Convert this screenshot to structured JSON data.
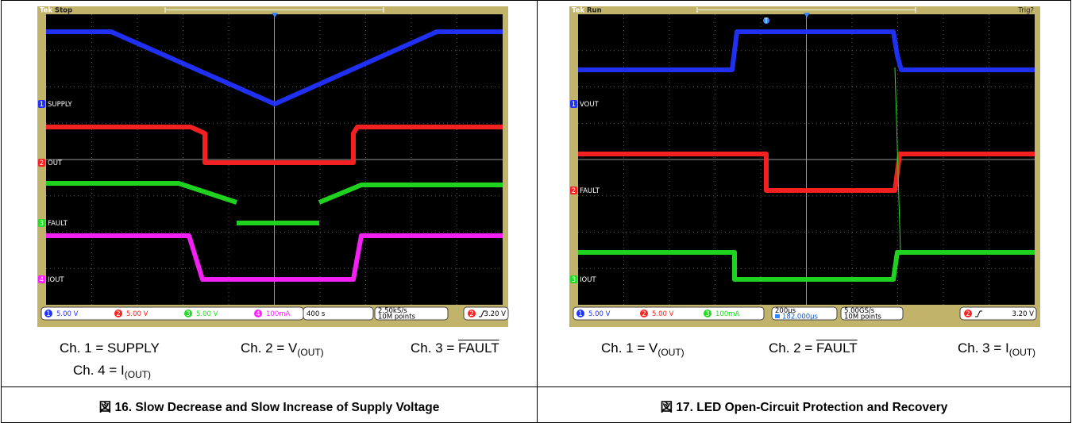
{
  "figures": [
    {
      "scope": {
        "logo": "Tek",
        "status": "Stop",
        "channels": [
          {
            "number": "1",
            "label": "SUPPLY",
            "color": "#2233ff"
          },
          {
            "number": "2",
            "label": "OUT",
            "color": "#ff2222"
          },
          {
            "number": "3",
            "label": "FAULT",
            "color": "#22dd22"
          },
          {
            "number": "4",
            "label": "IOUT",
            "color": "#ff22ff"
          }
        ],
        "readouts": [
          "5.00 V",
          "5.00 V",
          "5.00 V",
          "100mA"
        ],
        "timebase": "400 s",
        "sample_rate": "2.50kS/s",
        "record_length": "10M points",
        "trigger_channel": "2",
        "trigger_level": "3.20 V"
      },
      "channel_notes": [
        {
          "text": "Ch. 1 = SUPPLY"
        },
        {
          "text": "Ch. 2 = V",
          "sub": "(OUT)"
        },
        {
          "text": "Ch. 3 = ",
          "overline": "FAULT"
        },
        {
          "text": "Ch. 4 = I",
          "sub": "(OUT)"
        }
      ],
      "caption": "図 16. Slow Decrease and Slow Increase of Supply Voltage"
    },
    {
      "scope": {
        "logo": "Tek",
        "status": "Run",
        "trigger_state": "Trig?",
        "trigger_marker": "T",
        "channels": [
          {
            "number": "1",
            "label": "VOUT",
            "color": "#2233ff"
          },
          {
            "number": "2",
            "label": "FAULT",
            "color": "#ff2222"
          },
          {
            "number": "3",
            "label": "IOUT",
            "color": "#22dd22"
          }
        ],
        "readouts": [
          "5.00 V",
          "5.00 V",
          "100mA"
        ],
        "timebase": "200µs",
        "delay": "182.000µs",
        "sample_rate": "5.00GS/s",
        "record_length": "10M points",
        "trigger_channel": "2",
        "trigger_level": "3.20 V"
      },
      "channel_notes": [
        {
          "text": "Ch. 1 = V",
          "sub": "(OUT)"
        },
        {
          "text": "Ch. 2 = ",
          "overline": "FAULT"
        },
        {
          "text": "Ch. 3 = I",
          "sub": "(OUT)"
        }
      ],
      "caption": "図 17. LED Open-Circuit Protection and Recovery"
    }
  ]
}
